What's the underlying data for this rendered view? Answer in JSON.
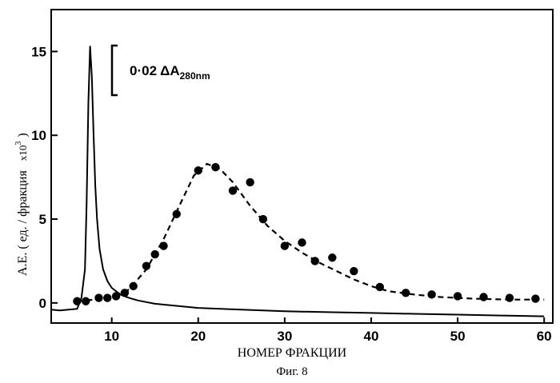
{
  "figure": {
    "caption": "Фиг. 8"
  },
  "chart_data": {
    "type": "line",
    "xlabel": "НОМЕР ФРАКЦИИ",
    "ylabel": "A.E.  ( ед. / фракция",
    "ylabel_multiplier": "x10",
    "ylabel_exponent": "3",
    "ylabel_close": ")",
    "xlim": [
      3,
      61
    ],
    "ylim": [
      -1.2,
      17.5
    ],
    "xticks": [
      10,
      20,
      30,
      40,
      50,
      60
    ],
    "yticks": [
      0,
      5,
      10,
      15
    ],
    "grid": false,
    "legend": "none",
    "scale_bar": {
      "text": "0·02  ΔA",
      "subscript": "280nm"
    },
    "series": [
      {
        "style": "solid-line",
        "x": [
          3,
          4,
          5,
          6,
          6.5,
          6.9,
          7.1,
          7.3,
          7.5,
          7.7,
          7.9,
          8.1,
          8.3,
          8.6,
          9,
          9.5,
          10,
          11,
          12,
          13,
          14,
          15,
          17,
          20,
          25,
          30,
          35,
          40,
          45,
          50,
          55,
          60
        ],
        "y": [
          -0.4,
          -0.45,
          -0.4,
          -0.35,
          0.3,
          2.0,
          6.0,
          12.0,
          15.3,
          13.5,
          10.0,
          7.0,
          5.0,
          3.2,
          2.0,
          1.3,
          0.9,
          0.5,
          0.3,
          0.15,
          0.05,
          -0.05,
          -0.15,
          -0.3,
          -0.4,
          -0.5,
          -0.55,
          -0.6,
          -0.65,
          -0.7,
          -0.75,
          -0.8
        ]
      },
      {
        "style": "dashed-line",
        "x": [
          6,
          8,
          10,
          12,
          14,
          16,
          18,
          19.5,
          21,
          22.5,
          24,
          26,
          28,
          30,
          32,
          34,
          36,
          38,
          40,
          42,
          45,
          48,
          52,
          56,
          60
        ],
        "y": [
          0.1,
          0.2,
          0.35,
          0.8,
          2.0,
          3.8,
          6.0,
          7.6,
          8.3,
          8.0,
          7.2,
          5.8,
          4.6,
          3.7,
          3.0,
          2.4,
          1.9,
          1.4,
          1.0,
          0.7,
          0.5,
          0.35,
          0.25,
          0.2,
          0.2
        ]
      },
      {
        "style": "markers",
        "x": [
          6,
          7,
          8.5,
          9.5,
          10.5,
          11.5,
          12.5,
          14,
          15,
          16,
          17.5,
          20,
          22,
          24,
          26,
          27.5,
          30,
          32,
          33.5,
          35.5,
          38,
          41,
          44,
          47,
          50,
          53,
          56,
          59,
          62
        ],
        "y": [
          0.1,
          0.1,
          0.3,
          0.3,
          0.4,
          0.6,
          1.0,
          2.2,
          2.9,
          3.4,
          5.3,
          7.9,
          8.1,
          6.7,
          7.2,
          5.0,
          3.4,
          3.6,
          2.5,
          2.7,
          1.9,
          0.95,
          0.6,
          0.5,
          0.4,
          0.35,
          0.3,
          0.25,
          0.2
        ]
      }
    ]
  }
}
